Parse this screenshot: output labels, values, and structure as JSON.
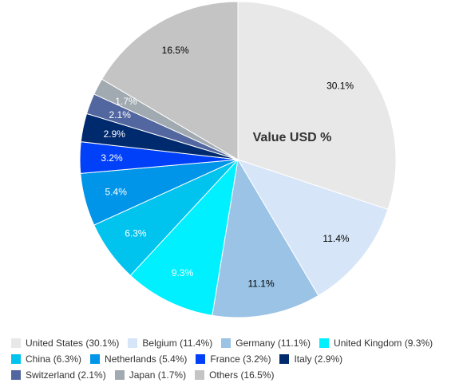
{
  "chart_data": {
    "type": "pie",
    "title": "Value USD %",
    "categories": [
      "United States",
      "Belgium",
      "Germany",
      "United Kingdom",
      "China",
      "Netherlands",
      "France",
      "Italy",
      "Switzerland",
      "Japan",
      "Others"
    ],
    "values": [
      30.1,
      11.4,
      11.1,
      9.3,
      6.3,
      5.4,
      3.2,
      2.9,
      2.1,
      1.7,
      16.5
    ],
    "data_labels": [
      "30.1%",
      "11.4%",
      "11.1%",
      "9.3%",
      "6.3%",
      "5.4%",
      "3.2%",
      "2.9%",
      "2.1%",
      "1.7%",
      "16.5%"
    ],
    "legend_labels": [
      "United States (30.1%)",
      "Belgium (11.4%)",
      "Germany (11.1%)",
      "United Kingdom (9.3%)",
      "China (6.3%)",
      "Netherlands (5.4%)",
      "France (3.2%)",
      "Italy (2.9%)",
      "Switzerland (2.1%)",
      "Japan (1.7%)",
      "Others (16.5%)"
    ],
    "colors": [
      "#e8e8e8",
      "#d6e6f8",
      "#9ac3e6",
      "#00f0ff",
      "#00c3ee",
      "#0095e8",
      "#0040f8",
      "#002a6e",
      "#5266a0",
      "#a0aab0",
      "#c4c4c4"
    ],
    "label_colors": [
      "#000000",
      "#000000",
      "#000000",
      "#ffffff",
      "#ffffff",
      "#ffffff",
      "#ffffff",
      "#ffffff",
      "#ffffff",
      "#ffffff",
      "#000000"
    ],
    "legend_placement": "bottom"
  }
}
